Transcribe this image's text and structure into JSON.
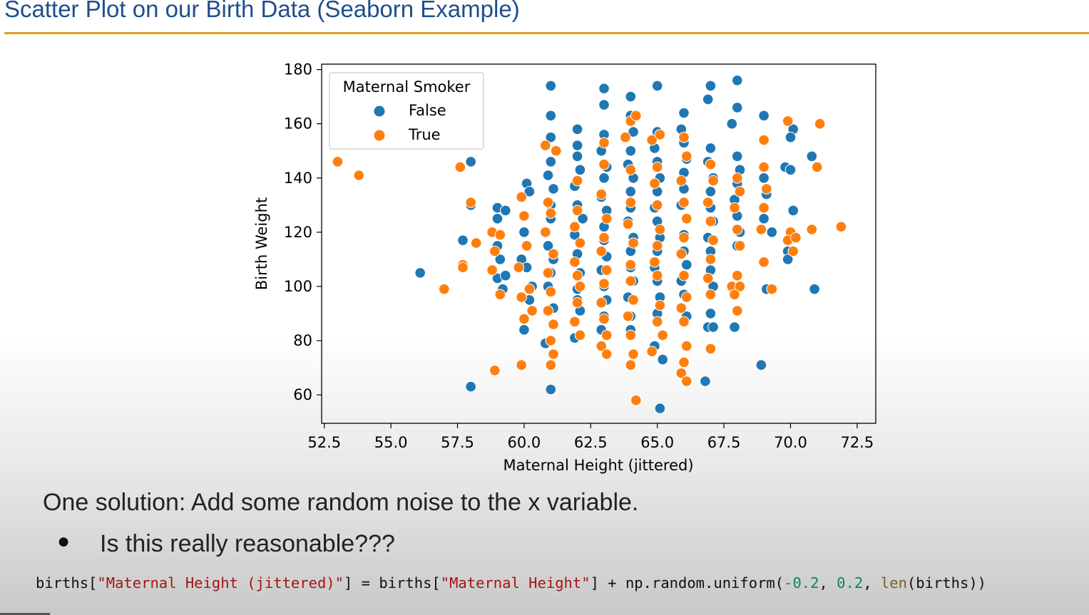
{
  "slide": {
    "title": "Scatter Plot on our Birth Data (Seaborn Example)",
    "bullet_main": "One solution: Add some random noise to the x variable.",
    "bullet_dot": "●",
    "bullet_sub": "Is this really reasonable???",
    "code": {
      "p1": "births[",
      "s1": "\"Maternal Height (jittered)\"",
      "p2": "] = births[",
      "s2": "\"Maternal Height\"",
      "p3": "] + np.random.uniform(",
      "n1": "-0.2",
      "p4": ", ",
      "n2": "0.2",
      "p5": ", ",
      "f1": "len",
      "p6": "(births))"
    }
  },
  "colors": {
    "title": "#1f4e8c",
    "rule": "#d9a21a",
    "false_series": "#1f77b4",
    "true_series": "#ff7f0e"
  },
  "chart_data": {
    "type": "scatter",
    "title": "",
    "xlabel": "Maternal Height (jittered)",
    "ylabel": "Birth Weight",
    "xlim": [
      52.4,
      73.2
    ],
    "ylim": [
      49.5,
      182
    ],
    "x_ticks": [
      52.5,
      55.0,
      57.5,
      60.0,
      62.5,
      65.0,
      67.5,
      70.0,
      72.5
    ],
    "x_tick_labels": [
      "52.5",
      "55.0",
      "57.5",
      "60.0",
      "62.5",
      "65.0",
      "67.5",
      "70.0",
      "72.5"
    ],
    "y_ticks": [
      60,
      80,
      100,
      120,
      140,
      160,
      180
    ],
    "y_tick_labels": [
      "60",
      "80",
      "100",
      "120",
      "140",
      "160",
      "180"
    ],
    "grid": false,
    "legend": {
      "title": "Maternal Smoker",
      "placement": "top-left",
      "entries": [
        "False",
        "True"
      ]
    },
    "series": [
      {
        "name": "False",
        "color": "#1f77b4",
        "points": [
          [
            56.1,
            105
          ],
          [
            58.0,
            63
          ],
          [
            57.7,
            117
          ],
          [
            58.0,
            146
          ],
          [
            58.0,
            130
          ],
          [
            59.0,
            129
          ],
          [
            59.0,
            125
          ],
          [
            59.3,
            128
          ],
          [
            59.0,
            115
          ],
          [
            59.1,
            110
          ],
          [
            59.0,
            103
          ],
          [
            59.2,
            99
          ],
          [
            59.3,
            104
          ],
          [
            60.0,
            84
          ],
          [
            60.1,
            138
          ],
          [
            60.2,
            135
          ],
          [
            60.0,
            120
          ],
          [
            59.9,
            110
          ],
          [
            60.1,
            107
          ],
          [
            60.3,
            100
          ],
          [
            60.2,
            95
          ],
          [
            60.8,
            79
          ],
          [
            61.0,
            174
          ],
          [
            61.0,
            163
          ],
          [
            61.0,
            155
          ],
          [
            61.0,
            146
          ],
          [
            60.9,
            141
          ],
          [
            61.1,
            136
          ],
          [
            61.0,
            130
          ],
          [
            61.0,
            125
          ],
          [
            60.9,
            115
          ],
          [
            61.1,
            110
          ],
          [
            61.0,
            105
          ],
          [
            60.9,
            100
          ],
          [
            61.1,
            92
          ],
          [
            61.0,
            62
          ],
          [
            62.0,
            158
          ],
          [
            62.0,
            152
          ],
          [
            62.0,
            148
          ],
          [
            62.1,
            143
          ],
          [
            61.9,
            137
          ],
          [
            62.0,
            130
          ],
          [
            62.2,
            125
          ],
          [
            61.9,
            119
          ],
          [
            62.0,
            112
          ],
          [
            62.1,
            105
          ],
          [
            62.0,
            99
          ],
          [
            62.0,
            95
          ],
          [
            62.1,
            91
          ],
          [
            61.9,
            81
          ],
          [
            63.0,
            173
          ],
          [
            63.0,
            167
          ],
          [
            63.0,
            156
          ],
          [
            62.9,
            150
          ],
          [
            63.1,
            144
          ],
          [
            63.0,
            140
          ],
          [
            62.9,
            133
          ],
          [
            63.1,
            128
          ],
          [
            63.0,
            122
          ],
          [
            63.0,
            117
          ],
          [
            63.1,
            111
          ],
          [
            62.9,
            106
          ],
          [
            63.0,
            100
          ],
          [
            63.1,
            95
          ],
          [
            63.0,
            89
          ],
          [
            62.9,
            84
          ],
          [
            64.0,
            170
          ],
          [
            64.0,
            163
          ],
          [
            64.1,
            157
          ],
          [
            64.0,
            150
          ],
          [
            63.9,
            145
          ],
          [
            64.1,
            140
          ],
          [
            64.0,
            135
          ],
          [
            64.0,
            129
          ],
          [
            63.9,
            124
          ],
          [
            64.1,
            118
          ],
          [
            64.0,
            113
          ],
          [
            64.0,
            107
          ],
          [
            64.1,
            102
          ],
          [
            63.9,
            96
          ],
          [
            64.0,
            89
          ],
          [
            64.0,
            84
          ],
          [
            65.0,
            174
          ],
          [
            65.0,
            157
          ],
          [
            64.9,
            151
          ],
          [
            65.0,
            146
          ],
          [
            65.1,
            140
          ],
          [
            65.0,
            135
          ],
          [
            64.9,
            129
          ],
          [
            65.0,
            124
          ],
          [
            65.1,
            118
          ],
          [
            65.0,
            113
          ],
          [
            64.9,
            107
          ],
          [
            65.0,
            102
          ],
          [
            65.1,
            96
          ],
          [
            65.0,
            90
          ],
          [
            64.9,
            78
          ],
          [
            65.2,
            73
          ],
          [
            65.1,
            55
          ],
          [
            66.0,
            164
          ],
          [
            65.9,
            158
          ],
          [
            66.0,
            153
          ],
          [
            66.1,
            147
          ],
          [
            66.0,
            142
          ],
          [
            66.0,
            136
          ],
          [
            65.9,
            130
          ],
          [
            66.1,
            125
          ],
          [
            66.0,
            119
          ],
          [
            66.0,
            113
          ],
          [
            66.1,
            108
          ],
          [
            65.9,
            102
          ],
          [
            66.0,
            97
          ],
          [
            66.1,
            89
          ],
          [
            66.9,
            169
          ],
          [
            67.0,
            174
          ],
          [
            67.0,
            151
          ],
          [
            66.9,
            146
          ],
          [
            67.1,
            140
          ],
          [
            67.0,
            135
          ],
          [
            67.0,
            129
          ],
          [
            67.1,
            124
          ],
          [
            66.9,
            118
          ],
          [
            67.0,
            113
          ],
          [
            67.0,
            106
          ],
          [
            67.1,
            100
          ],
          [
            67.0,
            90
          ],
          [
            66.9,
            85
          ],
          [
            67.1,
            85
          ],
          [
            66.8,
            65
          ],
          [
            68.0,
            176
          ],
          [
            68.0,
            166
          ],
          [
            67.8,
            160
          ],
          [
            68.0,
            148
          ],
          [
            68.1,
            143
          ],
          [
            68.0,
            138
          ],
          [
            67.9,
            132
          ],
          [
            68.0,
            126
          ],
          [
            68.1,
            120
          ],
          [
            68.0,
            115
          ],
          [
            67.9,
            99
          ],
          [
            67.9,
            85
          ],
          [
            69.0,
            163
          ],
          [
            69.0,
            140
          ],
          [
            69.1,
            134
          ],
          [
            69.0,
            125
          ],
          [
            69.3,
            120
          ],
          [
            69.1,
            99
          ],
          [
            68.9,
            71
          ],
          [
            70.1,
            158
          ],
          [
            70.0,
            155
          ],
          [
            69.8,
            144
          ],
          [
            70.0,
            143
          ],
          [
            70.1,
            128
          ],
          [
            69.9,
            113
          ],
          [
            69.9,
            110
          ],
          [
            70.8,
            148
          ],
          [
            70.9,
            99
          ]
        ]
      },
      {
        "name": "True",
        "color": "#ff7f0e",
        "points": [
          [
            53.0,
            146
          ],
          [
            53.8,
            141
          ],
          [
            57.0,
            99
          ],
          [
            57.6,
            144
          ],
          [
            58.0,
            131
          ],
          [
            57.7,
            108
          ],
          [
            57.7,
            107
          ],
          [
            58.2,
            116
          ],
          [
            58.9,
            69
          ],
          [
            58.8,
            120
          ],
          [
            58.9,
            113
          ],
          [
            59.1,
            119
          ],
          [
            58.8,
            106
          ],
          [
            59.1,
            97
          ],
          [
            59.9,
            133
          ],
          [
            60.0,
            126
          ],
          [
            60.1,
            115
          ],
          [
            59.8,
            107
          ],
          [
            60.2,
            99
          ],
          [
            59.9,
            96
          ],
          [
            60.0,
            88
          ],
          [
            60.3,
            91
          ],
          [
            59.9,
            71
          ],
          [
            60.8,
            152
          ],
          [
            61.2,
            150
          ],
          [
            60.9,
            131
          ],
          [
            61.0,
            127
          ],
          [
            60.8,
            120
          ],
          [
            61.1,
            112
          ],
          [
            60.9,
            105
          ],
          [
            61.0,
            98
          ],
          [
            60.9,
            91
          ],
          [
            61.1,
            86
          ],
          [
            61.0,
            80
          ],
          [
            61.1,
            75
          ],
          [
            61.0,
            71
          ],
          [
            62.0,
            139
          ],
          [
            62.0,
            128
          ],
          [
            61.9,
            122
          ],
          [
            62.1,
            116
          ],
          [
            61.9,
            109
          ],
          [
            62.0,
            104
          ],
          [
            62.1,
            100
          ],
          [
            62.0,
            94
          ],
          [
            61.9,
            87
          ],
          [
            62.1,
            82
          ],
          [
            63.0,
            153
          ],
          [
            63.0,
            145
          ],
          [
            62.9,
            134
          ],
          [
            63.1,
            125
          ],
          [
            63.0,
            118
          ],
          [
            62.9,
            113
          ],
          [
            63.1,
            106
          ],
          [
            63.0,
            101
          ],
          [
            62.9,
            94
          ],
          [
            63.0,
            88
          ],
          [
            63.1,
            82
          ],
          [
            62.9,
            78
          ],
          [
            63.1,
            75
          ],
          [
            64.0,
            161
          ],
          [
            64.2,
            163
          ],
          [
            63.8,
            155
          ],
          [
            64.0,
            143
          ],
          [
            64.0,
            131
          ],
          [
            63.9,
            123
          ],
          [
            64.1,
            116
          ],
          [
            64.0,
            108
          ],
          [
            64.0,
            102
          ],
          [
            64.1,
            95
          ],
          [
            63.9,
            89
          ],
          [
            64.0,
            82
          ],
          [
            64.1,
            75
          ],
          [
            64.0,
            71
          ],
          [
            64.2,
            58
          ],
          [
            64.8,
            154
          ],
          [
            65.1,
            156
          ],
          [
            65.0,
            144
          ],
          [
            64.9,
            138
          ],
          [
            65.0,
            130
          ],
          [
            65.1,
            121
          ],
          [
            65.0,
            115
          ],
          [
            64.9,
            109
          ],
          [
            65.0,
            104
          ],
          [
            65.1,
            93
          ],
          [
            65.0,
            87
          ],
          [
            65.2,
            82
          ],
          [
            64.8,
            76
          ],
          [
            66.0,
            155
          ],
          [
            66.1,
            148
          ],
          [
            65.9,
            139
          ],
          [
            66.0,
            131
          ],
          [
            66.1,
            125
          ],
          [
            66.0,
            118
          ],
          [
            65.9,
            112
          ],
          [
            66.0,
            104
          ],
          [
            66.1,
            96
          ],
          [
            65.9,
            92
          ],
          [
            66.0,
            87
          ],
          [
            66.1,
            78
          ],
          [
            66.0,
            72
          ],
          [
            65.9,
            68
          ],
          [
            66.1,
            65
          ],
          [
            67.0,
            145
          ],
          [
            67.1,
            139
          ],
          [
            66.9,
            131
          ],
          [
            67.0,
            124
          ],
          [
            67.1,
            117
          ],
          [
            67.0,
            110
          ],
          [
            66.9,
            103
          ],
          [
            67.0,
            97
          ],
          [
            67.0,
            77
          ],
          [
            68.0,
            140
          ],
          [
            68.1,
            135
          ],
          [
            67.9,
            129
          ],
          [
            68.0,
            121
          ],
          [
            68.1,
            115
          ],
          [
            68.0,
            104
          ],
          [
            67.8,
            100
          ],
          [
            68.1,
            100
          ],
          [
            67.9,
            97
          ],
          [
            68.0,
            91
          ],
          [
            69.0,
            154
          ],
          [
            69.0,
            144
          ],
          [
            69.0,
            129
          ],
          [
            69.1,
            136
          ],
          [
            68.9,
            121
          ],
          [
            69.0,
            109
          ],
          [
            69.3,
            99
          ],
          [
            70.0,
            120
          ],
          [
            69.9,
            117
          ],
          [
            70.1,
            113
          ],
          [
            70.2,
            118
          ],
          [
            69.9,
            161
          ],
          [
            70.8,
            121
          ],
          [
            71.0,
            144
          ],
          [
            71.1,
            160
          ],
          [
            71.9,
            122
          ]
        ]
      }
    ]
  }
}
